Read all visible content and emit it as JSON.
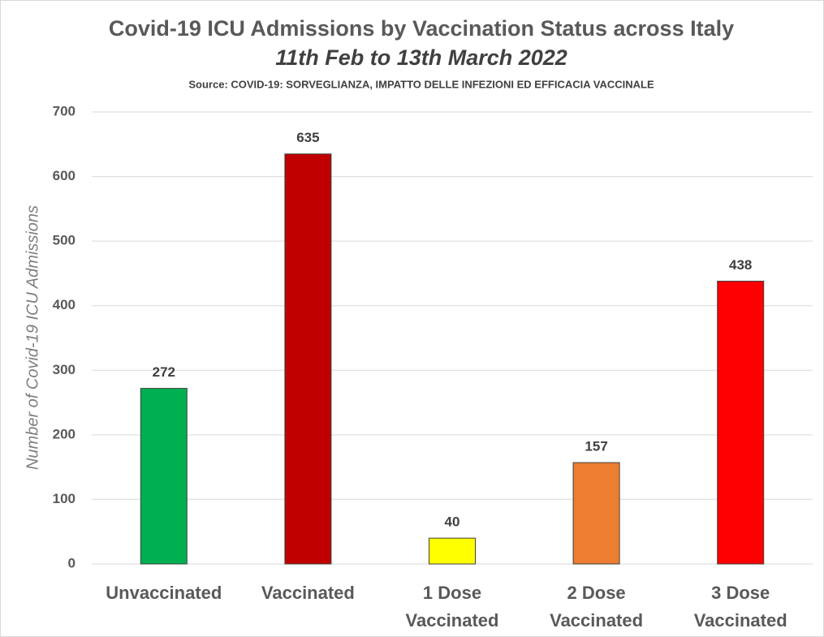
{
  "chart_data": {
    "type": "bar",
    "title": "Covid-19 ICU Admissions by Vaccination Status across Italy",
    "subtitle": "11th Feb to 13th March 2022",
    "source": "Source: COVID-19: SORVEGLIANZA, IMPATTO DELLE INFEZIONI ED EFFICACIA VACCINALE",
    "y_label": "Number of Covid-19 ICU Admissions",
    "categories": [
      "Unvaccinated",
      "Vaccinated",
      "1 Dose Vaccinated",
      "2 Dose Vaccinated",
      "3 Dose Vaccinated"
    ],
    "values": [
      272,
      635,
      40,
      157,
      438
    ],
    "colors": [
      "#00b050",
      "#c00000",
      "#ffff00",
      "#ed7d31",
      "#ff0000"
    ],
    "ylim": [
      0,
      700
    ],
    "yticks": [
      0,
      100,
      200,
      300,
      400,
      500,
      600,
      700
    ],
    "grid": true
  }
}
